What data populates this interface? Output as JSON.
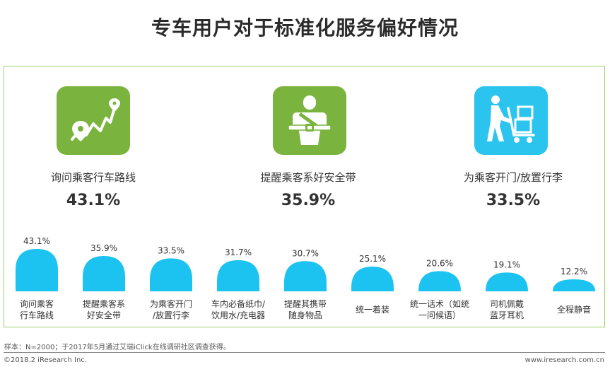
{
  "title": "专车用户对于标准化服务偏好情况",
  "highlights": [
    {
      "label": "询问乘客行车路线",
      "value": "43.1%",
      "icon": "route-map-icon",
      "color": "#7ab33e"
    },
    {
      "label": "提醒乘客系好安全带",
      "value": "35.9%",
      "icon": "seatbelt-icon",
      "color": "#7ab33e"
    },
    {
      "label": "为乘客开门/放置行李",
      "value": "33.5%",
      "icon": "luggage-cart-icon",
      "color": "#2ac4ee"
    }
  ],
  "chart_data": {
    "type": "bar",
    "categories": [
      [
        "询问乘客",
        "行车路线"
      ],
      [
        "提醒乘客系",
        "好安全带"
      ],
      [
        "为乘客开门",
        "/放置行李"
      ],
      [
        "车内必备纸巾/",
        "饮用水/充电器"
      ],
      [
        "提醒其携带",
        "随身物品"
      ],
      [
        "统一着装"
      ],
      [
        "统一话术（如统",
        "一问候语）"
      ],
      [
        "司机佩戴",
        "蓝牙耳机"
      ],
      [
        "全程静音"
      ]
    ],
    "values": [
      43.1,
      35.9,
      33.5,
      31.7,
      30.7,
      25.1,
      20.6,
      19.1,
      12.2
    ],
    "value_labels": [
      "43.1%",
      "35.9%",
      "33.5%",
      "31.7%",
      "30.7%",
      "25.1%",
      "20.6%",
      "19.1%",
      "12.2%"
    ],
    "bar_color": "#1dc3f0",
    "ylim": [
      0,
      43.1
    ]
  },
  "footer": {
    "note": "样本：N=2000；于2017年5月通过艾瑞iClick在线调研社区调查获得。",
    "copyright": "©2018.2 iResearch Inc.",
    "website": "www.iresearch.com.cn"
  }
}
